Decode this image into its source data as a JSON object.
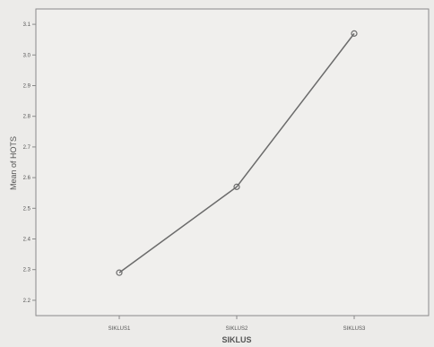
{
  "chart_data": {
    "type": "line",
    "categories": [
      "SIKLUS1",
      "SIKLUS2",
      "SIKLUS3"
    ],
    "series": [
      {
        "values": [
          2.29,
          2.57,
          3.07
        ]
      }
    ],
    "xlabel": "SIKLUS",
    "ylabel": "Mean of HOTS",
    "ylim": [
      2.15,
      3.15
    ],
    "yticks": [
      {
        "value": 2.2,
        "label": "2.2"
      },
      {
        "value": 2.3,
        "label": "2.3"
      },
      {
        "value": 2.4,
        "label": "2.4"
      },
      {
        "value": 2.5,
        "label": "2.5"
      },
      {
        "value": 2.6,
        "label": "2.6"
      },
      {
        "value": 2.7,
        "label": "2.7"
      },
      {
        "value": 2.8,
        "label": "2.8"
      },
      {
        "value": 2.9,
        "label": "2.9"
      },
      {
        "value": 3.0,
        "label": "3.0"
      },
      {
        "value": 3.1,
        "label": "3.1"
      }
    ],
    "grid": false,
    "legend": "none",
    "colors": {
      "line": "#6b6b6b",
      "marker": "#6b6b6b",
      "plot_bg": "#f0efed",
      "axis": "#8a8a8a"
    }
  }
}
